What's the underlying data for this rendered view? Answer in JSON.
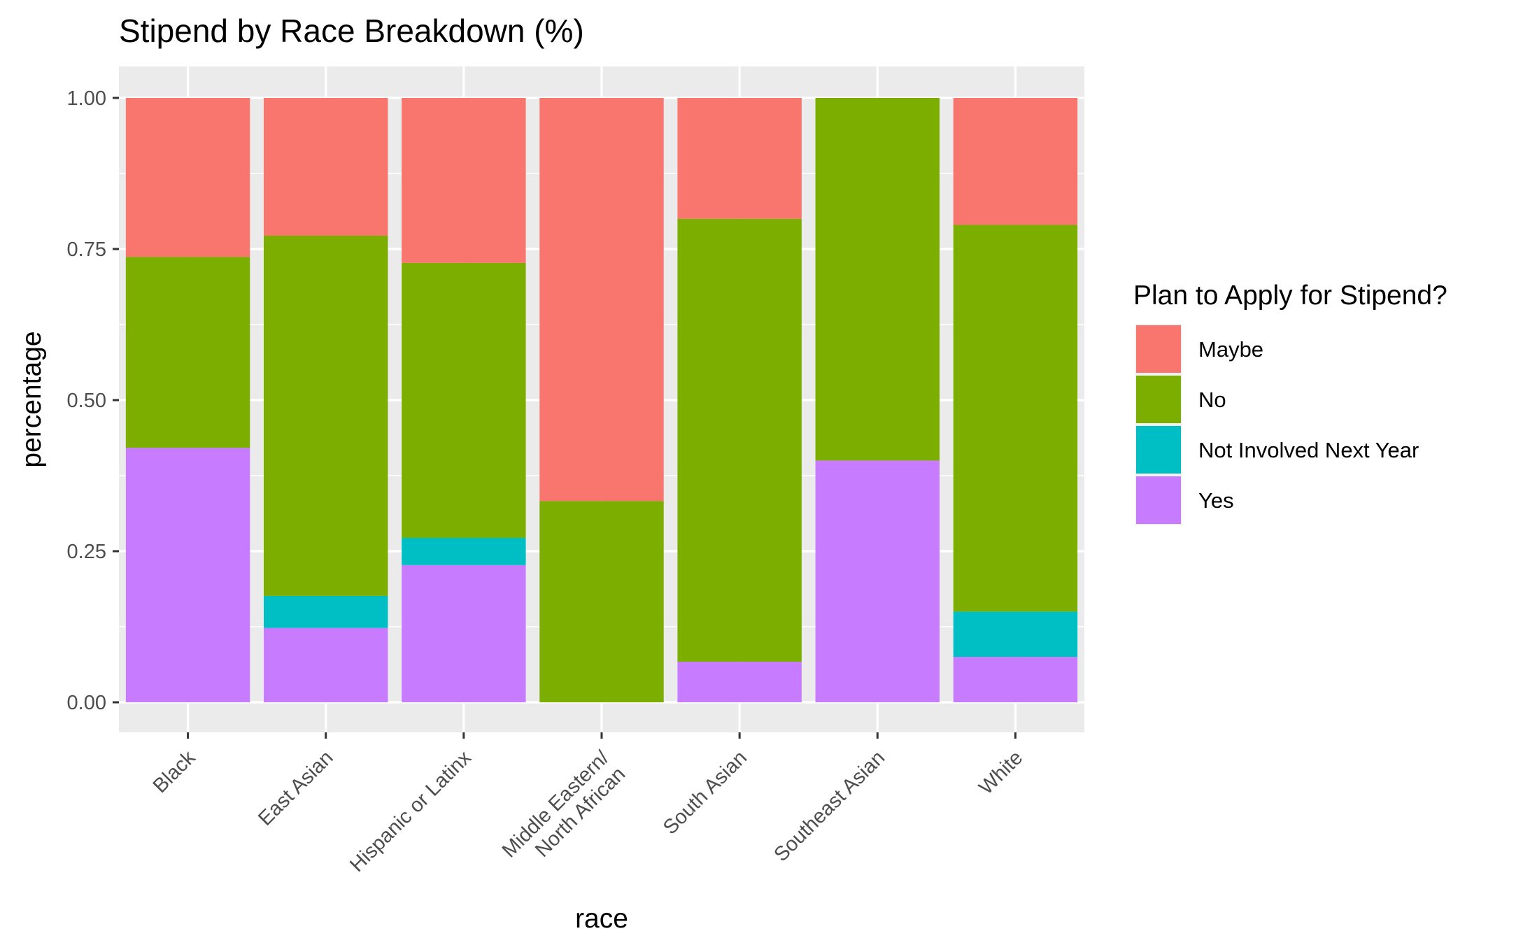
{
  "chart_data": {
    "type": "bar",
    "stacked": "percent",
    "title": "Stipend by Race Breakdown (%)",
    "xlabel": "race",
    "ylabel": "percentage",
    "ylim": [
      0,
      1
    ],
    "yticks": [
      "0.00",
      "0.25",
      "0.50",
      "0.75",
      "1.00"
    ],
    "grid": true,
    "legend_position": "right",
    "categories": [
      [
        "Black"
      ],
      [
        "East Asian"
      ],
      [
        "Hispanic or Latinx"
      ],
      [
        "Middle Eastern/",
        "North African"
      ],
      [
        "South Asian"
      ],
      [
        "Southeast Asian"
      ],
      [
        "White"
      ]
    ],
    "legend": {
      "title": "Plan to Apply for Stipend?",
      "entries": [
        "Maybe",
        "No",
        "Not Involved Next Year",
        "Yes"
      ]
    },
    "series": [
      {
        "name": "Maybe",
        "color": "#F8766D",
        "values": [
          0.263,
          0.228,
          0.273,
          0.667,
          0.2,
          0.0,
          0.21
        ]
      },
      {
        "name": "No",
        "color": "#7CAE00",
        "values": [
          0.316,
          0.596,
          0.455,
          0.333,
          0.733,
          0.6,
          0.64
        ]
      },
      {
        "name": "Not Involved Next Year",
        "color": "#00BFC4",
        "values": [
          0.0,
          0.053,
          0.045,
          0.0,
          0.0,
          0.0,
          0.075
        ]
      },
      {
        "name": "Yes",
        "color": "#C77CFF",
        "values": [
          0.421,
          0.123,
          0.227,
          0.0,
          0.067,
          0.4,
          0.075
        ]
      }
    ]
  }
}
